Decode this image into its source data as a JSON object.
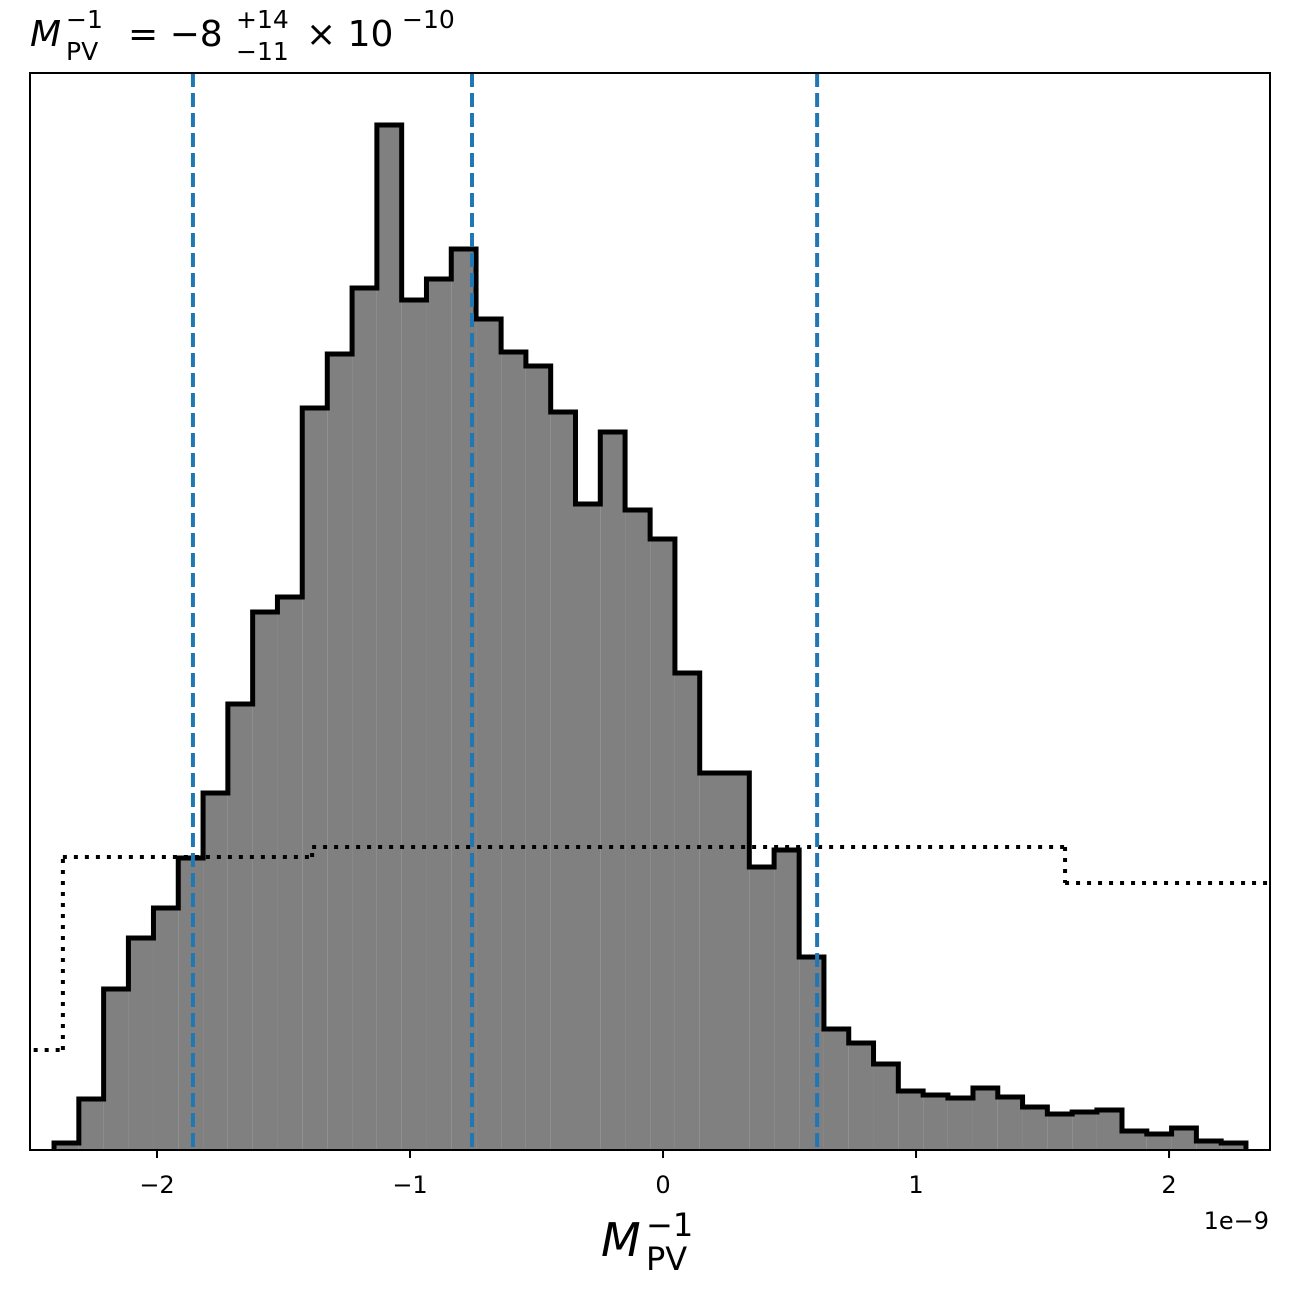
{
  "chart_data": {
    "type": "histogram",
    "title": {
      "symbol": "M",
      "symbol_sup": "−1",
      "symbol_sub": "PV",
      "equals": "= −8",
      "err_plus": "+14",
      "err_minus": "−11",
      "times": "× 10",
      "exponent": "−10"
    },
    "xlabel": {
      "symbol": "M",
      "sup": "−1",
      "sub": "PV"
    },
    "x_offset_label": "1e−9",
    "bins": [
      -2.407,
      -2.309,
      -2.211,
      -2.113,
      -2.014,
      -1.916,
      -1.818,
      -1.72,
      -1.622,
      -1.524,
      -1.426,
      -1.327,
      -1.229,
      -1.131,
      -1.033,
      -0.935,
      -0.837,
      -0.739,
      -0.64,
      -0.542,
      -0.444,
      -0.346,
      -0.248,
      -0.15,
      -0.051,
      0.047,
      0.145,
      0.243,
      0.341,
      0.439,
      0.538,
      0.636,
      0.734,
      0.832,
      0.93,
      1.028,
      1.126,
      1.225,
      1.323,
      1.421,
      1.519,
      1.617,
      1.715,
      1.814,
      1.912,
      2.01,
      2.108,
      2.206,
      2.304
    ],
    "values": [
      0.7,
      5.1,
      16.1,
      21.2,
      24.2,
      29.2,
      35.7,
      44.6,
      53.8,
      55.3,
      74.2,
      79.6,
      86.2,
      102.5,
      85.0,
      87.1,
      90.1,
      83.1,
      79.8,
      78.4,
      73.8,
      64.6,
      71.8,
      64.0,
      61.1,
      47.7,
      37.7,
      37.7,
      28.3,
      30.0,
      19.3,
      12.1,
      10.7,
      8.6,
      5.9,
      5.5,
      5.2,
      6.2,
      5.3,
      4.3,
      3.6,
      3.8,
      4.0,
      1.9,
      1.6,
      2.2,
      0.9,
      0.7
    ],
    "color": "#808080",
    "edgecolor": "#000000",
    "prior": {
      "bins": [
        -3.357,
        -2.372,
        -1.387,
        1.589,
        2.574
      ],
      "values": [
        10.0,
        29.3,
        30.3,
        26.7
      ],
      "color": "#000000"
    },
    "vlines": {
      "x": [
        -1.858,
        -0.755,
        0.609
      ],
      "color": "#1f77b4"
    },
    "xlim": [
      -2.502,
      2.399
    ],
    "ylim": [
      0,
      107.7
    ],
    "xticks": [
      {
        "value": -2,
        "label": "−2"
      },
      {
        "value": -1,
        "label": "−1"
      },
      0,
      1,
      2
    ]
  }
}
